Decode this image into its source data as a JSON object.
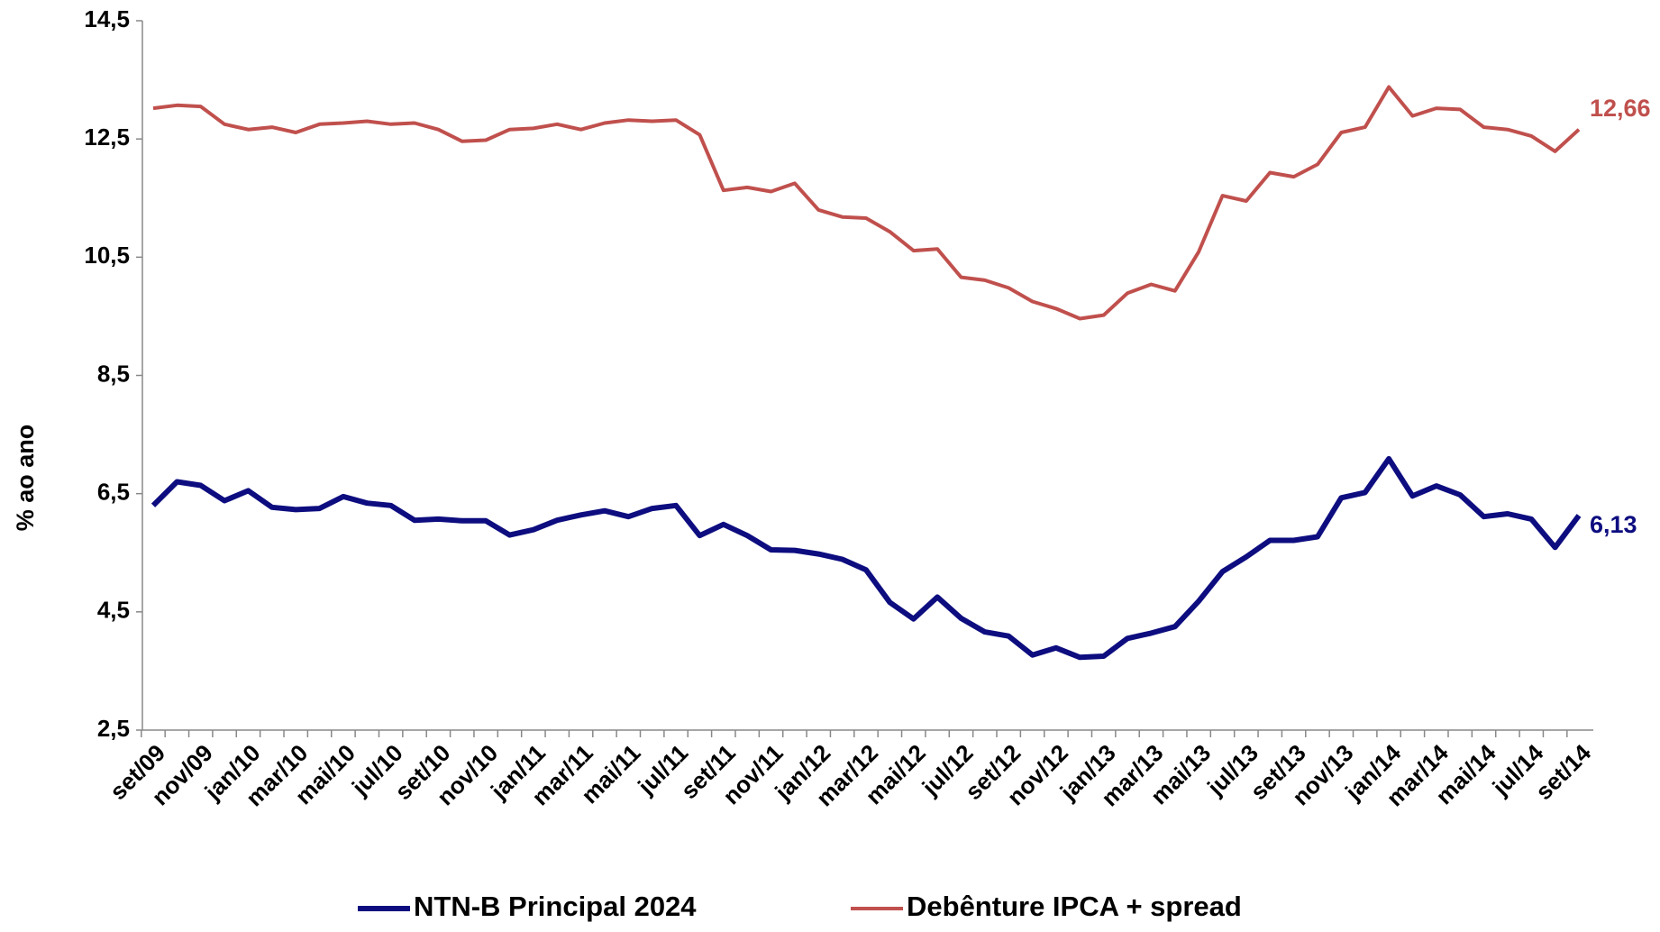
{
  "chart_data": {
    "type": "line",
    "y_label": "% ao ano",
    "categories": [
      "set/09",
      null,
      "nov/09",
      null,
      "jan/10",
      null,
      "mar/10",
      null,
      "mai/10",
      null,
      "jul/10",
      null,
      "set/10",
      null,
      "nov/10",
      null,
      "jan/11",
      null,
      "mar/11",
      null,
      "mai/11",
      null,
      "jul/11",
      null,
      "set/11",
      null,
      "nov/11",
      null,
      "jan/12",
      null,
      "mar/12",
      null,
      "mai/12",
      null,
      "jul/12",
      null,
      "set/12",
      null,
      "nov/12",
      null,
      "jan/13",
      null,
      "mar/13",
      null,
      "mai/13",
      null,
      "jul/13",
      null,
      "set/13",
      null,
      "nov/13",
      null,
      "jan/14",
      null,
      "mar/14",
      null,
      "mai/14",
      null,
      "jul/14",
      null,
      "set/14"
    ],
    "series": [
      {
        "name": "NTN-B Principal 2024",
        "color": "#0d0d80",
        "width": 6,
        "values": [
          6.3,
          6.7,
          6.64,
          6.38,
          6.55,
          6.27,
          6.23,
          6.25,
          6.45,
          6.34,
          6.3,
          6.05,
          6.07,
          6.04,
          6.04,
          5.8,
          5.89,
          6.05,
          6.14,
          6.21,
          6.11,
          6.25,
          6.3,
          5.79,
          5.98,
          5.79,
          5.55,
          5.54,
          5.48,
          5.39,
          5.21,
          4.66,
          4.38,
          4.75,
          4.39,
          4.16,
          4.09,
          3.77,
          3.89,
          3.73,
          3.75,
          4.05,
          4.14,
          4.25,
          4.68,
          5.18,
          5.43,
          5.71,
          5.71,
          5.77,
          6.43,
          6.52,
          7.09,
          6.46,
          6.63,
          6.48,
          6.11,
          6.16,
          6.07,
          5.59,
          6.13
        ],
        "value_labels": [
          null,
          null,
          null,
          null,
          null,
          null,
          null,
          null,
          null,
          null,
          null,
          null,
          null,
          null,
          null,
          null,
          null,
          null,
          null,
          null,
          null,
          null,
          null,
          null,
          null,
          null,
          null,
          null,
          null,
          null,
          null,
          null,
          null,
          null,
          null,
          null,
          null,
          null,
          null,
          null,
          null,
          null,
          null,
          null,
          null,
          null,
          null,
          null,
          null,
          null,
          null,
          null,
          null,
          null,
          null,
          null,
          null,
          null,
          null,
          null,
          "6,13"
        ]
      },
      {
        "name": "Debênture IPCA + spread",
        "color": "#c0504d",
        "width": 4,
        "values": [
          13.02,
          13.07,
          13.05,
          12.75,
          12.66,
          12.7,
          12.61,
          12.75,
          12.77,
          12.8,
          12.75,
          12.77,
          12.66,
          12.46,
          12.48,
          12.66,
          12.68,
          12.75,
          12.66,
          12.77,
          12.82,
          12.8,
          12.82,
          12.57,
          11.63,
          11.68,
          11.61,
          11.75,
          11.3,
          11.18,
          11.16,
          10.93,
          10.61,
          10.64,
          10.16,
          10.11,
          9.98,
          9.75,
          9.63,
          9.46,
          9.52,
          9.89,
          10.04,
          9.93,
          10.59,
          11.54,
          11.45,
          11.93,
          11.86,
          12.07,
          12.61,
          12.7,
          13.38,
          12.89,
          13.02,
          13.0,
          12.7,
          12.66,
          12.55,
          12.29,
          12.66
        ],
        "value_labels": [
          null,
          null,
          null,
          null,
          null,
          null,
          null,
          null,
          null,
          null,
          null,
          null,
          null,
          null,
          null,
          null,
          null,
          null,
          null,
          null,
          null,
          null,
          null,
          null,
          null,
          null,
          null,
          null,
          null,
          null,
          null,
          null,
          null,
          null,
          null,
          null,
          null,
          null,
          null,
          null,
          null,
          null,
          null,
          null,
          null,
          null,
          null,
          null,
          null,
          null,
          null,
          null,
          null,
          null,
          null,
          null,
          null,
          null,
          null,
          null,
          "12,66"
        ]
      }
    ],
    "ylim": [
      2.5,
      14.5
    ],
    "yticks": [
      {
        "value": 2.5,
        "label": "2,5"
      },
      {
        "value": 4.5,
        "label": "4,5"
      },
      {
        "value": 6.5,
        "label": "6,5"
      },
      {
        "value": 8.5,
        "label": "8,5"
      },
      {
        "value": 10.5,
        "label": "10,5"
      },
      {
        "value": 12.5,
        "label": "12,5"
      },
      {
        "value": 14.5,
        "label": "14,5"
      }
    ],
    "grid": false,
    "legend": "bottom"
  }
}
